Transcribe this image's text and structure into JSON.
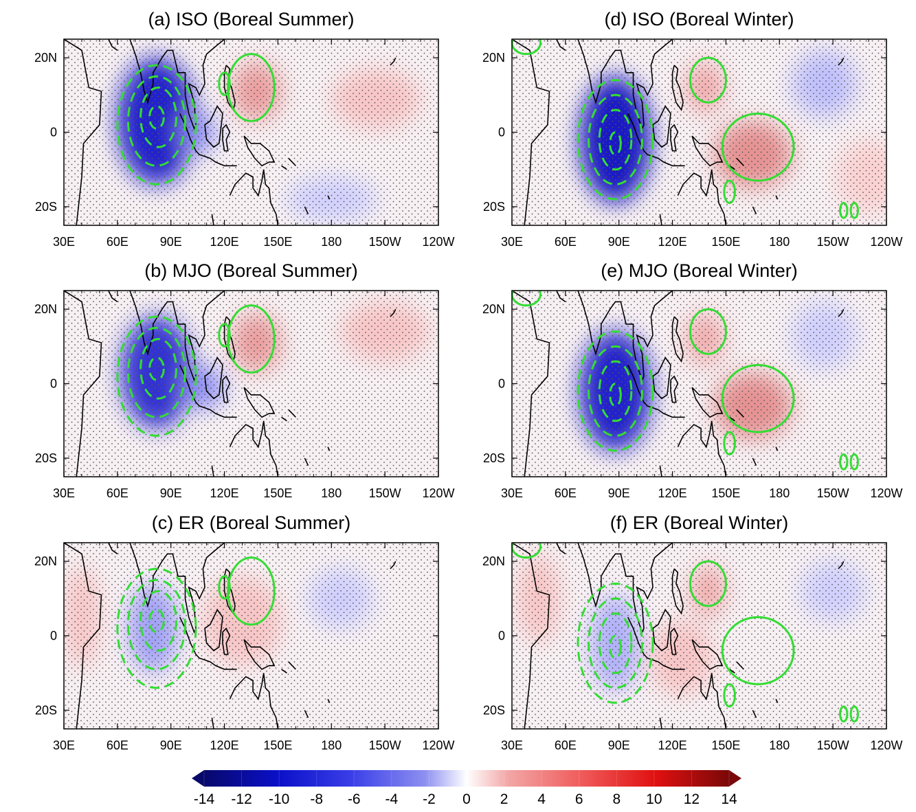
{
  "figure": {
    "lon_ticks": [
      "30E",
      "60E",
      "90E",
      "120E",
      "150E",
      "180",
      "150W",
      "120W"
    ],
    "lat_ticks": [
      "20N",
      "0",
      "20S"
    ],
    "colors": {
      "positive_contour": "#33dd33",
      "negative_contour": "#33dd33",
      "coastline": "#000000",
      "stipple": "#555555"
    },
    "panels": [
      {
        "id": "a",
        "title": "(a) ISO (Boreal Summer)",
        "column": "left",
        "row": 0,
        "negative_strength": 1.0,
        "anomalies": [
          {
            "lon": 82,
            "lat": 3,
            "rlon": 22,
            "rlat": 17,
            "value": -13
          },
          {
            "lon": 105,
            "lat": 0,
            "rlon": 10,
            "rlat": 6,
            "value": -6
          },
          {
            "lon": 138,
            "lat": 11,
            "rlon": 14,
            "rlat": 8,
            "value": 6
          },
          {
            "lon": 205,
            "lat": 9,
            "rlon": 25,
            "rlat": 8,
            "value": 3
          },
          {
            "lon": 180,
            "lat": -18,
            "rlon": 25,
            "rlat": 6,
            "value": -2
          }
        ]
      },
      {
        "id": "b",
        "title": "(b) MJO (Boreal Summer)",
        "column": "left",
        "row": 1,
        "negative_strength": 0.95,
        "anomalies": [
          {
            "lon": 82,
            "lat": 3,
            "rlon": 20,
            "rlat": 15,
            "value": -12
          },
          {
            "lon": 108,
            "lat": -1,
            "rlon": 12,
            "rlat": 6,
            "value": -6
          },
          {
            "lon": 138,
            "lat": 11,
            "rlon": 14,
            "rlat": 8,
            "value": 6
          },
          {
            "lon": 210,
            "lat": 14,
            "rlon": 25,
            "rlat": 8,
            "value": 3
          }
        ]
      },
      {
        "id": "c",
        "title": "(c) ER (Boreal Summer)",
        "column": "left",
        "row": 2,
        "negative_strength": 0.45,
        "anomalies": [
          {
            "lon": 80,
            "lat": 2,
            "rlon": 14,
            "rlat": 12,
            "value": -5
          },
          {
            "lon": 40,
            "lat": 5,
            "rlon": 10,
            "rlat": 14,
            "value": 3
          },
          {
            "lon": 130,
            "lat": 4,
            "rlon": 22,
            "rlat": 12,
            "value": 3
          },
          {
            "lon": 185,
            "lat": 10,
            "rlon": 18,
            "rlat": 8,
            "value": -2
          }
        ]
      },
      {
        "id": "d",
        "title": "(d) ISO (Boreal Winter)",
        "column": "right",
        "row": 0,
        "negative_strength": 1.0,
        "anomalies": [
          {
            "lon": 88,
            "lat": -2,
            "rlon": 20,
            "rlat": 17,
            "value": -14
          },
          {
            "lon": 165,
            "lat": -6,
            "rlon": 22,
            "rlat": 9,
            "value": 7
          },
          {
            "lon": 138,
            "lat": 12,
            "rlon": 11,
            "rlat": 7,
            "value": 5
          },
          {
            "lon": 205,
            "lat": 13,
            "rlon": 18,
            "rlat": 9,
            "value": -3
          },
          {
            "lon": 230,
            "lat": -12,
            "rlon": 18,
            "rlat": 10,
            "value": 2
          }
        ]
      },
      {
        "id": "e",
        "title": "(e) MJO (Boreal Winter)",
        "column": "right",
        "row": 1,
        "negative_strength": 0.95,
        "anomalies": [
          {
            "lon": 88,
            "lat": -2,
            "rlon": 20,
            "rlat": 16,
            "value": -13
          },
          {
            "lon": 165,
            "lat": -6,
            "rlon": 22,
            "rlat": 9,
            "value": 7
          },
          {
            "lon": 138,
            "lat": 12,
            "rlon": 11,
            "rlat": 7,
            "value": 5
          },
          {
            "lon": 205,
            "lat": 13,
            "rlon": 18,
            "rlat": 9,
            "value": -2
          }
        ]
      },
      {
        "id": "f",
        "title": "(f) ER (Boreal Winter)",
        "column": "right",
        "row": 2,
        "negative_strength": 0.4,
        "anomalies": [
          {
            "lon": 88,
            "lat": -2,
            "rlon": 14,
            "rlat": 13,
            "value": -4
          },
          {
            "lon": 140,
            "lat": 12,
            "rlon": 10,
            "rlat": 7,
            "value": 5
          },
          {
            "lon": 125,
            "lat": -6,
            "rlon": 18,
            "rlat": 10,
            "value": 3
          },
          {
            "lon": 45,
            "lat": 10,
            "rlon": 12,
            "rlat": 12,
            "value": 3
          },
          {
            "lon": 210,
            "lat": 12,
            "rlon": 18,
            "rlat": 8,
            "value": -2
          }
        ]
      }
    ],
    "colorbar": {
      "tick_labels": [
        "-14",
        "-12",
        "-10",
        "-8",
        "-6",
        "-4",
        "-2",
        "0",
        "2",
        "4",
        "6",
        "8",
        "10",
        "12",
        "14"
      ],
      "min": -14,
      "max": 14
    }
  }
}
